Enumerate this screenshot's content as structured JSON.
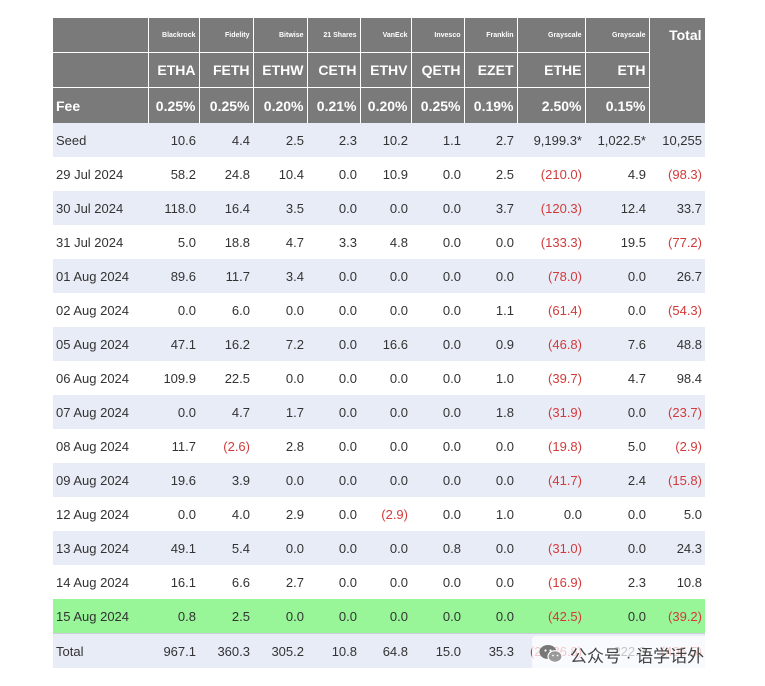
{
  "columns": [
    {
      "issuer": "Blackrock",
      "ticker": "ETHA",
      "fee": "0.25%"
    },
    {
      "issuer": "Fidelity",
      "ticker": "FETH",
      "fee": "0.25%"
    },
    {
      "issuer": "Bitwise",
      "ticker": "ETHW",
      "fee": "0.20%"
    },
    {
      "issuer": "21 Shares",
      "ticker": "CETH",
      "fee": "0.21%"
    },
    {
      "issuer": "VanEck",
      "ticker": "ETHV",
      "fee": "0.20%"
    },
    {
      "issuer": "Invesco",
      "ticker": "QETH",
      "fee": "0.25%"
    },
    {
      "issuer": "Franklin",
      "ticker": "EZET",
      "fee": "0.19%"
    },
    {
      "issuer": "Grayscale",
      "ticker": "ETHE",
      "fee": "2.50%"
    },
    {
      "issuer": "Grayscale",
      "ticker": "ETH",
      "fee": "0.15%"
    }
  ],
  "total_header": "Total",
  "fee_label": "Fee",
  "rows": [
    {
      "label": "Seed",
      "values": [
        "10.6",
        "4.4",
        "2.5",
        "2.3",
        "10.2",
        "1.1",
        "2.7",
        "9,199.3*",
        "1,022.5*",
        "10,255"
      ]
    },
    {
      "label": "29 Jul 2024",
      "values": [
        "58.2",
        "24.8",
        "10.4",
        "0.0",
        "10.9",
        "0.0",
        "2.5",
        "(210.0)",
        "4.9",
        "(98.3)"
      ]
    },
    {
      "label": "30 Jul 2024",
      "values": [
        "118.0",
        "16.4",
        "3.5",
        "0.0",
        "0.0",
        "0.0",
        "3.7",
        "(120.3)",
        "12.4",
        "33.7"
      ]
    },
    {
      "label": "31 Jul 2024",
      "values": [
        "5.0",
        "18.8",
        "4.7",
        "3.3",
        "4.8",
        "0.0",
        "0.0",
        "(133.3)",
        "19.5",
        "(77.2)"
      ]
    },
    {
      "label": "01 Aug 2024",
      "values": [
        "89.6",
        "11.7",
        "3.4",
        "0.0",
        "0.0",
        "0.0",
        "0.0",
        "(78.0)",
        "0.0",
        "26.7"
      ]
    },
    {
      "label": "02 Aug 2024",
      "values": [
        "0.0",
        "6.0",
        "0.0",
        "0.0",
        "0.0",
        "0.0",
        "1.1",
        "(61.4)",
        "0.0",
        "(54.3)"
      ]
    },
    {
      "label": "05 Aug 2024",
      "values": [
        "47.1",
        "16.2",
        "7.2",
        "0.0",
        "16.6",
        "0.0",
        "0.9",
        "(46.8)",
        "7.6",
        "48.8"
      ]
    },
    {
      "label": "06 Aug 2024",
      "values": [
        "109.9",
        "22.5",
        "0.0",
        "0.0",
        "0.0",
        "0.0",
        "1.0",
        "(39.7)",
        "4.7",
        "98.4"
      ]
    },
    {
      "label": "07 Aug 2024",
      "values": [
        "0.0",
        "4.7",
        "1.7",
        "0.0",
        "0.0",
        "0.0",
        "1.8",
        "(31.9)",
        "0.0",
        "(23.7)"
      ]
    },
    {
      "label": "08 Aug 2024",
      "values": [
        "11.7",
        "(2.6)",
        "2.8",
        "0.0",
        "0.0",
        "0.0",
        "0.0",
        "(19.8)",
        "5.0",
        "(2.9)"
      ]
    },
    {
      "label": "09 Aug 2024",
      "values": [
        "19.6",
        "3.9",
        "0.0",
        "0.0",
        "0.0",
        "0.0",
        "0.0",
        "(41.7)",
        "2.4",
        "(15.8)"
      ]
    },
    {
      "label": "12 Aug 2024",
      "values": [
        "0.0",
        "4.0",
        "2.9",
        "0.0",
        "(2.9)",
        "0.0",
        "1.0",
        "0.0",
        "0.0",
        "5.0"
      ]
    },
    {
      "label": "13 Aug 2024",
      "values": [
        "49.1",
        "5.4",
        "0.0",
        "0.0",
        "0.0",
        "0.8",
        "0.0",
        "(31.0)",
        "0.0",
        "24.3"
      ]
    },
    {
      "label": "14 Aug 2024",
      "values": [
        "16.1",
        "6.6",
        "2.7",
        "0.0",
        "0.0",
        "0.0",
        "0.0",
        "(16.9)",
        "2.3",
        "10.8"
      ]
    },
    {
      "label": "15 Aug 2024",
      "values": [
        "0.8",
        "2.5",
        "0.0",
        "0.0",
        "0.0",
        "0.0",
        "0.0",
        "(42.5)",
        "0.0",
        "(39.2)"
      ],
      "highlight": true
    },
    {
      "label": "Total",
      "values": [
        "967.1",
        "360.3",
        "305.2",
        "10.8",
        "64.8",
        "15.0",
        "35.3",
        "(2,386.8)",
        "222.8",
        "(405.5)"
      ],
      "is_total": true
    }
  ],
  "colors": {
    "header_bg": "#7a7a7a",
    "stripe": "#e8ecf7",
    "highlight": "#98f598",
    "negative": "#d23a3a"
  },
  "watermark": {
    "icon": "wechat-icon",
    "text": "公众号 · 语学话外"
  }
}
